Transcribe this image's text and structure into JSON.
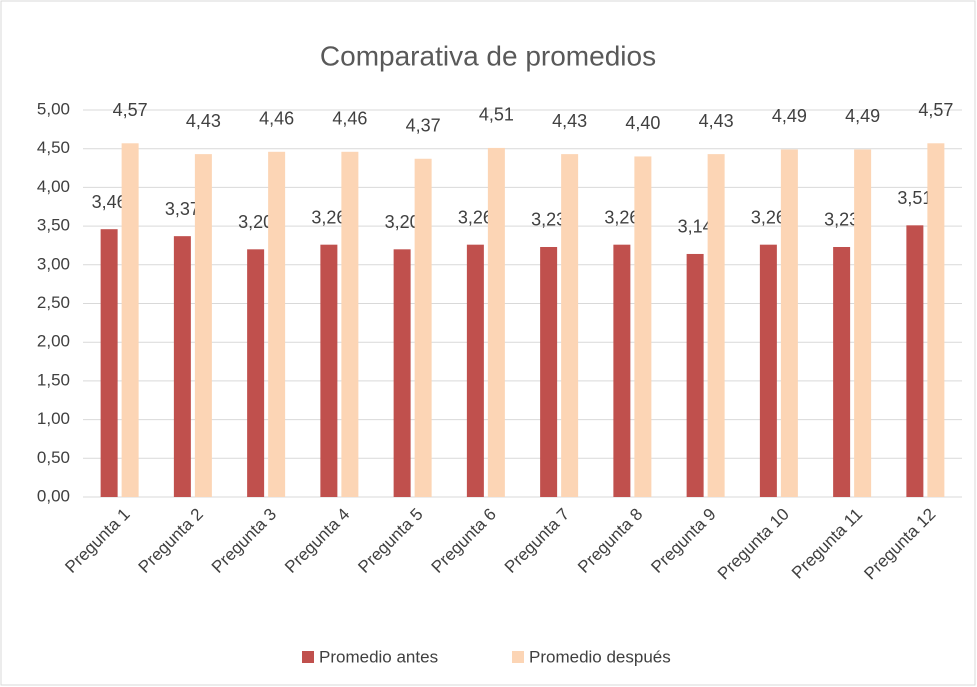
{
  "chart_data": {
    "type": "bar",
    "title": "Comparativa de promedios",
    "categories": [
      "Pregunta 1",
      "Pregunta 2",
      "Pregunta 3",
      "Pregunta 4",
      "Pregunta 5",
      "Pregunta 6",
      "Pregunta 7",
      "Pregunta 8",
      "Pregunta 9",
      "Pregunta 10",
      "Pregunta 11",
      "Pregunta 12"
    ],
    "series": [
      {
        "name": "Promedio antes",
        "color": "#c0504d",
        "values": [
          3.46,
          3.37,
          3.2,
          3.26,
          3.2,
          3.26,
          3.23,
          3.26,
          3.14,
          3.26,
          3.23,
          3.51
        ],
        "value_labels": [
          "3,46",
          "3,37",
          "3,20",
          "3,26",
          "3,20",
          "3,26",
          "3,23",
          "3,26",
          "3,14",
          "3,26",
          "3,23",
          "3,51"
        ]
      },
      {
        "name": "Promedio después",
        "color": "#fcd5b5",
        "values": [
          4.57,
          4.43,
          4.46,
          4.46,
          4.37,
          4.51,
          4.43,
          4.4,
          4.43,
          4.49,
          4.49,
          4.57
        ],
        "value_labels": [
          "4,57",
          "4,43",
          "4,46",
          "4,46",
          "4,37",
          "4,51",
          "4,43",
          "4,40",
          "4,43",
          "4,49",
          "4,49",
          "4,57"
        ]
      }
    ],
    "ylim": [
      0,
      5
    ],
    "yticks": [
      {
        "value": 0,
        "label": "0,00"
      },
      {
        "value": 0.5,
        "label": "0,50"
      },
      {
        "value": 1,
        "label": "1,00"
      },
      {
        "value": 1.5,
        "label": "1,50"
      },
      {
        "value": 2,
        "label": "2,00"
      },
      {
        "value": 2.5,
        "label": "2,50"
      },
      {
        "value": 3,
        "label": "3,00"
      },
      {
        "value": 3.5,
        "label": "3,50"
      },
      {
        "value": 4,
        "label": "4,00"
      },
      {
        "value": 4.5,
        "label": "4,50"
      },
      {
        "value": 5,
        "label": "5,00"
      }
    ],
    "grid": true,
    "legend": "bottom"
  }
}
